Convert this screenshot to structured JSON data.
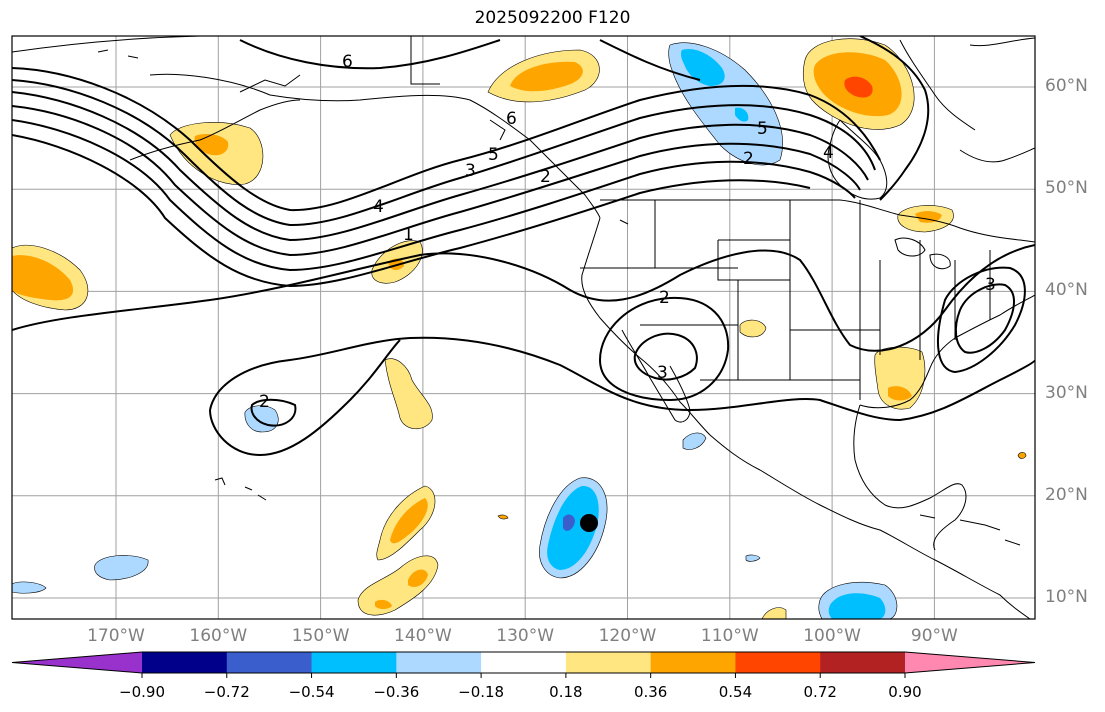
{
  "title": "2025092200 F120",
  "map": {
    "lon_labels": [
      {
        "lon": -170,
        "text": "170°W"
      },
      {
        "lon": -160,
        "text": "160°W"
      },
      {
        "lon": -150,
        "text": "150°W"
      },
      {
        "lon": -140,
        "text": "140°W"
      },
      {
        "lon": -130,
        "text": "130°W"
      },
      {
        "lon": -120,
        "text": "120°W"
      },
      {
        "lon": -110,
        "text": "110°W"
      },
      {
        "lon": -100,
        "text": "100°W"
      },
      {
        "lon": -90,
        "text": "90°W"
      }
    ],
    "lat_labels": [
      {
        "lat": 60,
        "text": "60°N"
      },
      {
        "lat": 50,
        "text": "50°N"
      },
      {
        "lat": 40,
        "text": "40°N"
      },
      {
        "lat": 30,
        "text": "30°N"
      },
      {
        "lat": 20,
        "text": "20°N"
      },
      {
        "lat": 10,
        "text": "10°N"
      }
    ],
    "contour_labels": [
      "6",
      "6",
      "5",
      "5",
      "4",
      "4",
      "3",
      "3",
      "3",
      "2",
      "2",
      "2",
      "2",
      "1"
    ],
    "colors": {
      "contour": "#000000",
      "grid": "#a0a0a0",
      "coast": "#000000",
      "marker": "#000000"
    }
  },
  "colorbar": {
    "levels": [
      "−0.90",
      "−0.72",
      "−0.54",
      "−0.36",
      "−0.18",
      "0.18",
      "0.36",
      "0.54",
      "0.72",
      "0.90"
    ],
    "colors": [
      "#9932cc",
      "#00008b",
      "#3a5fcd",
      "#00bfff",
      "#add8ff",
      "#ffffff",
      "#ffe680",
      "#ffa500",
      "#ff4500",
      "#b22222",
      "#ff88b0"
    ]
  }
}
